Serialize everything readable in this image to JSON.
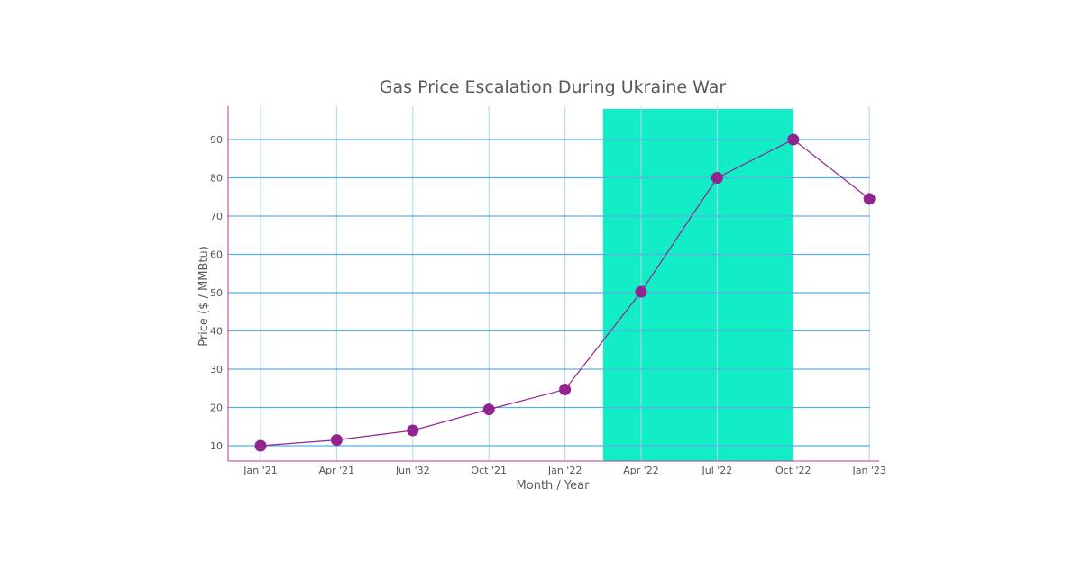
{
  "chart_data": {
    "type": "line",
    "title": "Gas Price Escalation During Ukraine War",
    "xlabel": "Month / Year",
    "ylabel": "Price ($ / MMBtu)",
    "categories": [
      "Jan '21",
      "Apr '21",
      "Jun '32",
      "Oct '21",
      "Jan '22",
      "Apr '22",
      "Jul '22",
      "Oct '22",
      "Jan '23"
    ],
    "values": [
      10,
      11.5,
      14,
      19.5,
      24.7,
      50.2,
      80,
      90,
      74.5
    ],
    "yticks": [
      10,
      20,
      30,
      40,
      50,
      60,
      70,
      80,
      90
    ],
    "ylim": [
      6,
      98.7
    ],
    "grid": true,
    "highlight_band": {
      "from": 4.5,
      "to": 7,
      "color": "#12edc6"
    },
    "colors": {
      "line": "#93248f",
      "marker": "#93248f",
      "grid": "#5aaee8",
      "axis": "#b23a9e"
    }
  }
}
